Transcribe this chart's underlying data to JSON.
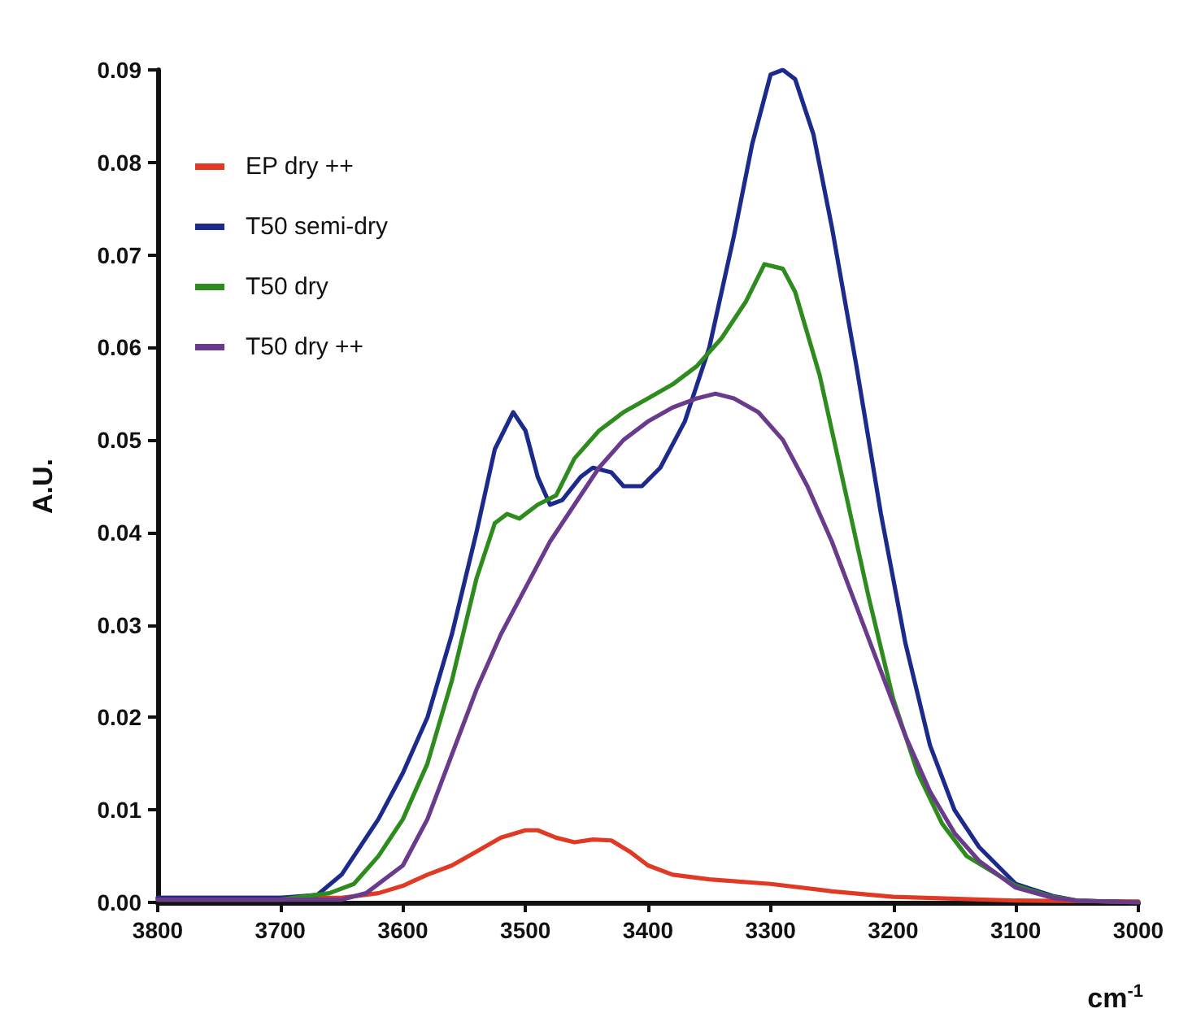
{
  "chart_data": {
    "type": "line",
    "xlabel": "cm$^{-1}$",
    "ylabel": "A.U.",
    "xlim": [
      3800,
      3000
    ],
    "xticks": [
      3800,
      3700,
      3600,
      3500,
      3400,
      3300,
      3200,
      3100,
      3000
    ],
    "ylim": [
      0,
      0.09
    ],
    "yticks": [
      {
        "value": 0,
        "label": "0.00"
      },
      0.01,
      0.02,
      0.03,
      0.04,
      0.05,
      0.06,
      0.07,
      0.08,
      0.09
    ],
    "grid": false,
    "legend": "top left",
    "marker": "none",
    "line_style": "solid",
    "series": [
      {
        "name": "EP dry ++",
        "color": "#e03a24",
        "x": [
          3800,
          3700,
          3650,
          3620,
          3600,
          3580,
          3560,
          3540,
          3520,
          3500,
          3490,
          3475,
          3460,
          3445,
          3430,
          3415,
          3400,
          3380,
          3350,
          3300,
          3250,
          3200,
          3100,
          3000
        ],
        "values": [
          0.0005,
          0.0005,
          0.0005,
          0.001,
          0.0018,
          0.003,
          0.004,
          0.0055,
          0.007,
          0.0078,
          0.0078,
          0.007,
          0.0065,
          0.0068,
          0.0067,
          0.0055,
          0.004,
          0.003,
          0.0025,
          0.002,
          0.0012,
          0.0006,
          0.0002,
          0.0001
        ]
      },
      {
        "name": "T50 semi-dry",
        "color": "#1c2a8c",
        "x": [
          3800,
          3700,
          3670,
          3650,
          3620,
          3600,
          3580,
          3560,
          3540,
          3525,
          3510,
          3500,
          3490,
          3480,
          3470,
          3455,
          3445,
          3430,
          3420,
          3405,
          3390,
          3370,
          3350,
          3330,
          3315,
          3300,
          3290,
          3280,
          3265,
          3250,
          3230,
          3210,
          3190,
          3170,
          3150,
          3130,
          3100,
          3070,
          3050,
          3000
        ],
        "values": [
          0.0005,
          0.0005,
          0.0008,
          0.003,
          0.009,
          0.014,
          0.02,
          0.029,
          0.04,
          0.049,
          0.053,
          0.051,
          0.046,
          0.043,
          0.0435,
          0.046,
          0.047,
          0.0465,
          0.045,
          0.045,
          0.047,
          0.052,
          0.06,
          0.072,
          0.082,
          0.0895,
          0.09,
          0.089,
          0.083,
          0.073,
          0.058,
          0.042,
          0.028,
          0.017,
          0.01,
          0.006,
          0.002,
          0.0007,
          0.0002,
          0
        ]
      },
      {
        "name": "T50 dry",
        "color": "#2e8b1e",
        "x": [
          3800,
          3700,
          3660,
          3640,
          3620,
          3600,
          3580,
          3560,
          3540,
          3525,
          3515,
          3505,
          3490,
          3475,
          3460,
          3440,
          3420,
          3400,
          3380,
          3360,
          3340,
          3320,
          3305,
          3290,
          3280,
          3260,
          3240,
          3220,
          3200,
          3180,
          3160,
          3140,
          3100,
          3070,
          3050,
          3000
        ],
        "values": [
          0.0003,
          0.0003,
          0.001,
          0.002,
          0.005,
          0.009,
          0.015,
          0.024,
          0.035,
          0.041,
          0.042,
          0.0415,
          0.043,
          0.044,
          0.048,
          0.051,
          0.053,
          0.0545,
          0.056,
          0.058,
          0.061,
          0.065,
          0.069,
          0.0685,
          0.066,
          0.057,
          0.045,
          0.033,
          0.022,
          0.014,
          0.0085,
          0.005,
          0.0018,
          0.0006,
          0.0002,
          0
        ]
      },
      {
        "name": "T50 dry ++",
        "color": "#6a3a8c",
        "x": [
          3800,
          3650,
          3630,
          3600,
          3580,
          3560,
          3540,
          3520,
          3500,
          3480,
          3460,
          3440,
          3420,
          3400,
          3380,
          3360,
          3345,
          3330,
          3310,
          3290,
          3270,
          3250,
          3230,
          3210,
          3190,
          3170,
          3150,
          3130,
          3100,
          3070,
          3050,
          3000
        ],
        "values": [
          0.0003,
          0.0003,
          0.001,
          0.004,
          0.009,
          0.016,
          0.023,
          0.029,
          0.034,
          0.039,
          0.043,
          0.047,
          0.05,
          0.052,
          0.0535,
          0.0545,
          0.055,
          0.0545,
          0.053,
          0.05,
          0.045,
          0.039,
          0.032,
          0.025,
          0.018,
          0.012,
          0.0075,
          0.0045,
          0.0016,
          0.0005,
          0.0002,
          0
        ]
      }
    ]
  }
}
